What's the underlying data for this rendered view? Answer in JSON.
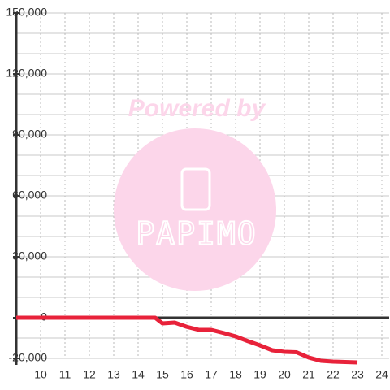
{
  "chart_data": {
    "type": "line",
    "x": [
      9,
      14.7,
      15,
      15.5,
      16,
      16.5,
      17,
      17.5,
      18,
      18.5,
      19,
      19.5,
      20,
      20.5,
      21,
      21.5,
      22,
      23
    ],
    "series": [
      {
        "color": "#e8223a",
        "values": [
          0,
          0,
          -2800,
          -2400,
          -4500,
          -6000,
          -6000,
          -7500,
          -9200,
          -11500,
          -13600,
          -16000,
          -16800,
          -17000,
          -19600,
          -21200,
          -21600,
          -22000
        ]
      }
    ],
    "xlim": [
      9,
      24.3
    ],
    "xticks": [
      10,
      11,
      12,
      13,
      14,
      15,
      16,
      17,
      18,
      19,
      20,
      21,
      22,
      23,
      24
    ],
    "ylim": [
      -20000,
      150000
    ],
    "yticks": [
      {
        "value": -20000,
        "label": "-20,000"
      },
      0,
      {
        "value": 30000,
        "label": "30,000"
      },
      {
        "value": 60000,
        "label": "60,000"
      },
      {
        "value": 90000,
        "label": "90,000"
      },
      {
        "value": 120000,
        "label": "120,000"
      },
      {
        "value": 150000,
        "label": "150,000"
      }
    ],
    "ygrid": [
      -20000,
      -10000,
      0,
      10000,
      20000,
      30000,
      40000,
      50000,
      60000,
      70000,
      80000,
      90000,
      100000,
      110000,
      120000,
      130000,
      140000,
      150000
    ],
    "grid": true,
    "watermark": {
      "text": "Powered by",
      "logo": "PAPIMO"
    }
  }
}
